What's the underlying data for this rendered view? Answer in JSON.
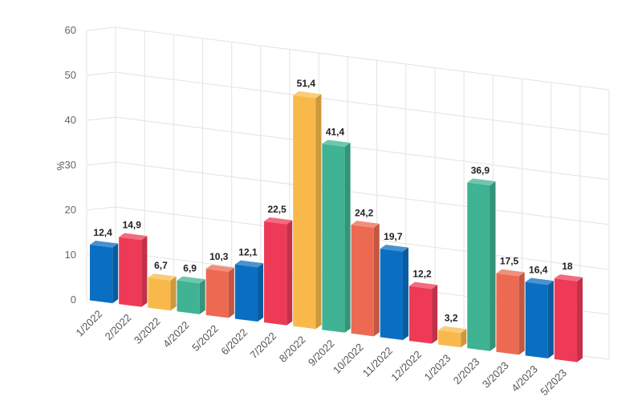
{
  "chart_data": {
    "type": "bar",
    "title": "",
    "xlabel": "",
    "ylabel": "%",
    "ylim": [
      0,
      60
    ],
    "yticks": [
      0,
      10,
      20,
      30,
      40,
      50,
      60
    ],
    "grid": true,
    "legend": "none",
    "categories": [
      "1/2022",
      "2/2022",
      "3/2022",
      "4/2022",
      "5/2022",
      "6/2022",
      "7/2022",
      "8/2022",
      "9/2022",
      "10/2022",
      "11/2022",
      "12/2022",
      "1/2023",
      "2/2023",
      "3/2023",
      "4/2023",
      "5/2023"
    ],
    "values": [
      12.4,
      14.9,
      6.7,
      6.9,
      10.3,
      12.1,
      22.5,
      51.4,
      41.4,
      24.2,
      19.7,
      12.2,
      3.2,
      36.9,
      17.5,
      16.4,
      18
    ],
    "value_labels": [
      "12,4",
      "14,9",
      "6,7",
      "6,9",
      "10,3",
      "12,1",
      "22,5",
      "51,4",
      "41,4",
      "24,2",
      "19,7",
      "12,2",
      "3,2",
      "36,9",
      "17,5",
      "16,4",
      "18"
    ],
    "colors": [
      "#0a6fc2",
      "#ee3a56",
      "#f9b94a",
      "#3fb393",
      "#ec6a52",
      "#0a6fc2",
      "#ee3a56",
      "#f9b94a",
      "#3fb393",
      "#ec6a52",
      "#0a6fc2",
      "#ee3a56",
      "#f9b94a",
      "#3fb393",
      "#ec6a52",
      "#0a6fc2",
      "#ee3a56"
    ]
  }
}
